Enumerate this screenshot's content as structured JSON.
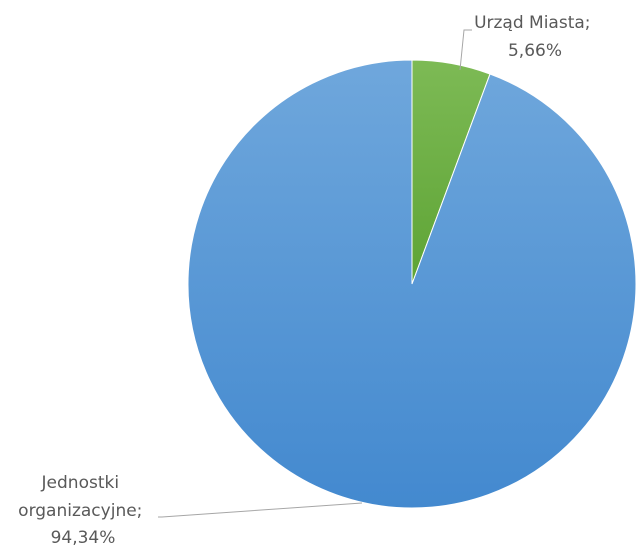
{
  "chart_data": {
    "type": "pie",
    "slices": [
      {
        "label": "Urząd Miasta",
        "value": 5.66,
        "value_text": "5,66%",
        "label_lines": [
          "Urząd Miasta;",
          "5,66%"
        ],
        "color": "#70ad47"
      },
      {
        "label": "Jednostki organizacyjne",
        "value": 94.34,
        "value_text": "94,34%",
        "label_lines": [
          "Jednostki",
          "organizacyjne;",
          "94,34%"
        ],
        "color": "#5b9bd5"
      }
    ],
    "start_angle_deg": 0,
    "direction": "clockwise",
    "data_labels": "outside-with-leader-lines",
    "legend": "none"
  },
  "colors": {
    "leader_line": "#a6a6a6",
    "label_text": "#595959",
    "slice_border": "#ffffff"
  }
}
